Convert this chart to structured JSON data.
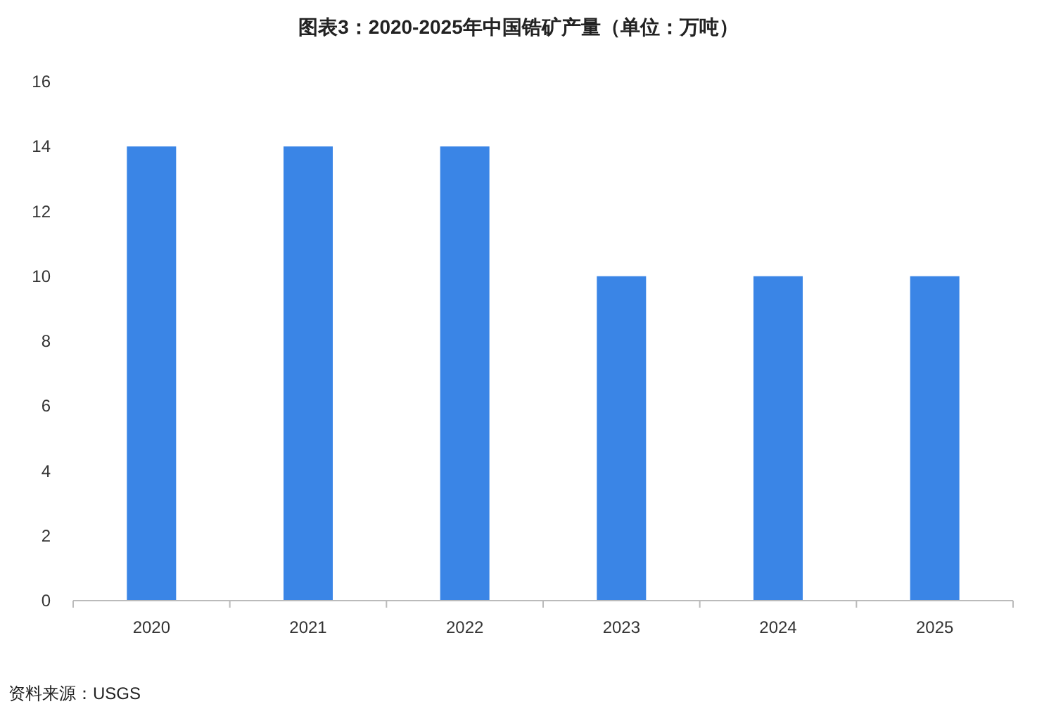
{
  "chart_data": {
    "type": "bar",
    "title": "图表3：2020-2025年中国锆矿产量（单位：万吨）",
    "categories": [
      "2020",
      "2021",
      "2022",
      "2023",
      "2024",
      "2025"
    ],
    "values": [
      14,
      14,
      14,
      10,
      10,
      10
    ],
    "color": "#3a85e6",
    "ylim": [
      0,
      16
    ],
    "yticks": [
      0,
      2,
      4,
      6,
      8,
      10,
      12,
      14,
      16
    ],
    "annotations": [
      "资料来源：USGS"
    ]
  }
}
